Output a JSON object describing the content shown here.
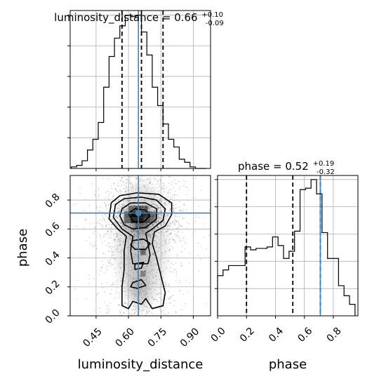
{
  "chart_data": [
    {
      "type": "histogram",
      "panel": "luminosity_distance marginal",
      "title": "luminosity_distance = 0.66",
      "title_sup": "+0.10",
      "title_sub": "-0.09",
      "xlim": [
        0.33,
        0.98
      ],
      "bin_edges": [
        0.335,
        0.36,
        0.385,
        0.41,
        0.435,
        0.46,
        0.485,
        0.51,
        0.535,
        0.56,
        0.585,
        0.61,
        0.635,
        0.66,
        0.685,
        0.71,
        0.735,
        0.76,
        0.785,
        0.81,
        0.835,
        0.86,
        0.885,
        0.91,
        0.935,
        0.96
      ],
      "counts": [
        0.01,
        0.02,
        0.05,
        0.12,
        0.19,
        0.3,
        0.53,
        0.73,
        0.85,
        0.93,
        1.0,
        0.99,
        1.0,
        0.89,
        0.74,
        0.53,
        0.41,
        0.29,
        0.19,
        0.14,
        0.06,
        0.04,
        0.01,
        0.0,
        0.0
      ],
      "quantile_lines": [
        0.57,
        0.66,
        0.76
      ],
      "truth": 0.646,
      "grid": true
    },
    {
      "type": "histogram",
      "panel": "phase marginal",
      "title": "phase = 0.52",
      "title_sup": "+0.19",
      "title_sub": "-0.32",
      "xlim": [
        0.0,
        0.97
      ],
      "bin_edges": [
        0.0,
        0.038,
        0.076,
        0.114,
        0.152,
        0.19,
        0.228,
        0.266,
        0.304,
        0.342,
        0.38,
        0.418,
        0.456,
        0.494,
        0.532,
        0.57,
        0.608,
        0.646,
        0.684,
        0.722,
        0.76,
        0.798,
        0.836,
        0.874,
        0.912,
        0.95
      ],
      "counts": [
        0.28,
        0.32,
        0.35,
        0.35,
        0.35,
        0.48,
        0.46,
        0.47,
        0.47,
        0.48,
        0.55,
        0.49,
        0.4,
        0.45,
        0.59,
        0.88,
        0.89,
        0.95,
        0.85,
        0.58,
        0.4,
        0.4,
        0.21,
        0.14,
        0.08
      ],
      "quantile_lines": [
        0.2,
        0.52,
        0.71
      ],
      "truth": 0.71,
      "grid": true,
      "xlabel": "phase",
      "xticks": [
        "0.0",
        "0.2",
        "0.4",
        "0.6",
        "0.8"
      ]
    },
    {
      "type": "2d-histogram-contour",
      "panel": "phase vs luminosity_distance",
      "xlabel": "luminosity_distance",
      "ylabel": "phase",
      "xlim": [
        0.33,
        0.98
      ],
      "ylim": [
        0.0,
        0.97
      ],
      "xticks": [
        "0.45",
        "0.60",
        "0.75",
        "0.90"
      ],
      "yticks": [
        "0.0",
        "0.2",
        "0.4",
        "0.6",
        "0.8"
      ],
      "truth": {
        "x": 0.646,
        "y": 0.71
      },
      "peak": {
        "x": 0.65,
        "y": 0.67
      },
      "grid": true
    }
  ],
  "colors": {
    "hist": "#000000",
    "truth": "#4682b4",
    "grid": "#b0b0b0",
    "scatter": "#000000"
  }
}
